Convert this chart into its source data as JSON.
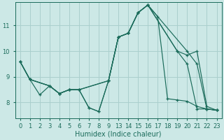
{
  "xlabel": "Humidex (Indice chaleur)",
  "bg_color": "#cce8e6",
  "grid_color": "#aacfcd",
  "line_color": "#1a6b5a",
  "xtick_labels": [
    "0",
    "1",
    "2",
    "3",
    "4",
    "5",
    "6",
    "7",
    "8",
    "9",
    "13",
    "14",
    "15",
    "16",
    "17",
    "18",
    "19",
    "20",
    "21",
    "22",
    "23"
  ],
  "yticks": [
    8,
    9,
    10,
    11
  ],
  "ylim": [
    7.4,
    11.9
  ],
  "series": [
    {
      "xi": [
        0,
        1,
        2,
        3,
        4,
        5,
        6,
        7,
        8,
        9,
        10,
        11,
        12,
        13,
        14,
        15,
        16,
        17,
        18,
        19,
        20
      ],
      "y": [
        9.6,
        8.9,
        8.3,
        8.65,
        8.35,
        8.5,
        8.5,
        7.8,
        7.65,
        8.85,
        10.55,
        10.7,
        11.5,
        11.8,
        11.35,
        8.15,
        8.1,
        8.05,
        7.85,
        7.75,
        7.7
      ]
    },
    {
      "xi": [
        0,
        1,
        3,
        4,
        5,
        6,
        9,
        10,
        11,
        12,
        13,
        16,
        17,
        18,
        19,
        20
      ],
      "y": [
        9.6,
        8.9,
        8.65,
        8.35,
        8.5,
        8.5,
        8.85,
        10.55,
        10.7,
        11.5,
        11.8,
        10.0,
        9.85,
        10.0,
        7.85,
        7.7
      ]
    },
    {
      "xi": [
        0,
        1,
        3,
        4,
        5,
        6,
        9,
        10,
        11,
        12,
        13,
        17,
        18,
        19,
        20
      ],
      "y": [
        9.6,
        8.9,
        8.65,
        8.35,
        8.5,
        8.5,
        8.85,
        10.55,
        10.7,
        11.5,
        11.8,
        10.0,
        9.5,
        7.75,
        7.7
      ]
    },
    {
      "xi": [
        0,
        1,
        3,
        4,
        5,
        6,
        7,
        8,
        9,
        10,
        11,
        12,
        13,
        16,
        17,
        18,
        19,
        20
      ],
      "y": [
        9.6,
        8.9,
        8.65,
        8.35,
        8.5,
        8.5,
        7.8,
        7.65,
        8.85,
        10.55,
        10.7,
        11.5,
        11.8,
        10.0,
        9.5,
        7.75,
        7.75,
        7.7
      ]
    }
  ]
}
